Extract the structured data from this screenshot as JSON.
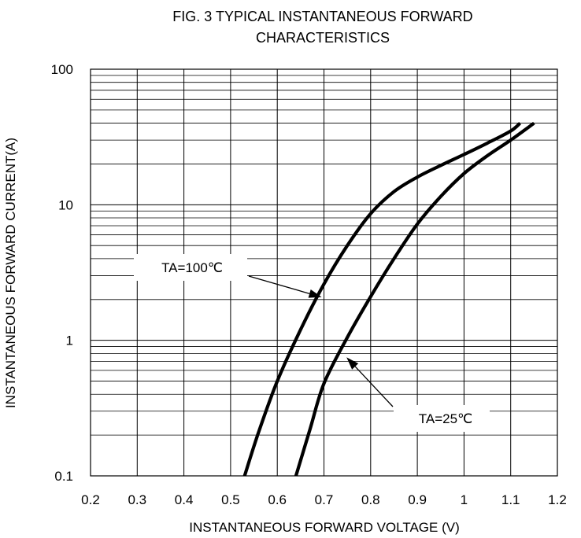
{
  "chart_data": {
    "type": "line",
    "title": "FIG. 3 TYPICAL INSTANTANEOUS FORWARD CHARACTERISTICS",
    "title_lines": [
      "FIG. 3 TYPICAL INSTANTANEOUS FORWARD",
      "CHARACTERISTICS"
    ],
    "xlabel": "INSTANTANEOUS FORWARD VOLTAGE (V)",
    "ylabel": "INSTANTANEOUS FORWARD CURRENT(A)",
    "xlim": [
      0.2,
      1.2
    ],
    "ylim": [
      0.1,
      100
    ],
    "yscale": "log",
    "x_ticks": [
      "0.2",
      "0.3",
      "0.4",
      "0.5",
      "0.6",
      "0.7",
      "0.8",
      "0.9",
      "1",
      "1.1",
      "1.2"
    ],
    "y_ticks": [
      "0.1",
      "1",
      "10",
      "100"
    ],
    "grid": true,
    "legend": "none",
    "series": [
      {
        "x": [
          0.53,
          0.56,
          0.6,
          0.65,
          0.7,
          0.75,
          0.8,
          0.85,
          0.9,
          0.95,
          1.0,
          1.05,
          1.1,
          1.12
        ],
        "y": [
          0.1,
          0.21,
          0.5,
          1.2,
          2.6,
          5.0,
          8.6,
          12.5,
          16.0,
          19.5,
          23.5,
          28.5,
          35.0,
          40.0
        ]
      },
      {
        "x": [
          0.64,
          0.67,
          0.7,
          0.75,
          0.8,
          0.85,
          0.9,
          0.95,
          1.0,
          1.05,
          1.1,
          1.15
        ],
        "y": [
          0.1,
          0.22,
          0.48,
          1.05,
          2.1,
          4.0,
          7.2,
          11.5,
          17.0,
          23.0,
          30.0,
          40.0
        ]
      }
    ],
    "annotations": [
      {
        "text": "TA=100℃",
        "x": 0.695,
        "y": 2.0
      },
      {
        "text": "TA=25℃",
        "x": 0.745,
        "y": 0.78
      }
    ]
  }
}
